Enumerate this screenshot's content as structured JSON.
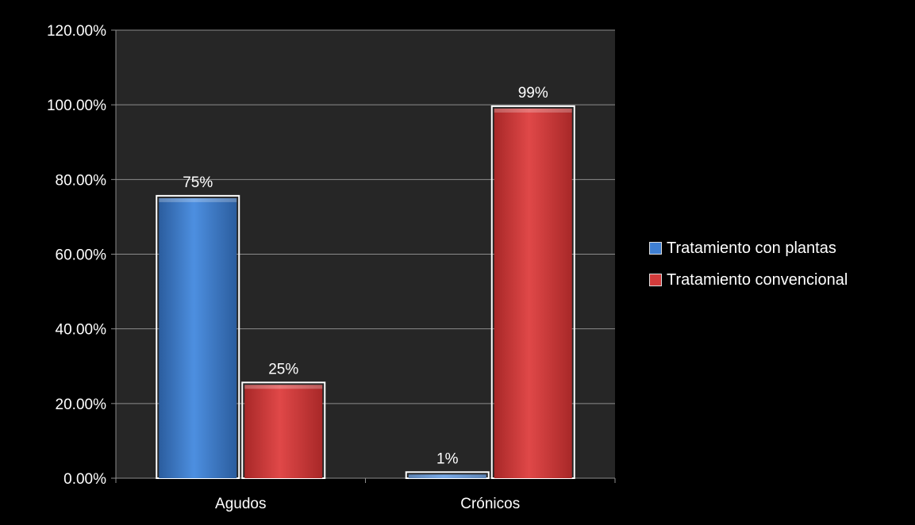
{
  "chart_data": {
    "type": "bar",
    "categories": [
      "Agudos",
      "Crónicos"
    ],
    "series": [
      {
        "name": "Tratamiento con plantas",
        "values": [
          75,
          1
        ],
        "labels": [
          "75%",
          "1%"
        ],
        "color": "#3f7fd2"
      },
      {
        "name": "Tratamiento convencional",
        "values": [
          25,
          99
        ],
        "labels": [
          "25%",
          "99%"
        ],
        "color": "#d23b3b"
      }
    ],
    "ylim": [
      0,
      120
    ],
    "yticks": [
      0,
      20,
      40,
      60,
      80,
      100,
      120
    ],
    "ytick_labels": [
      "0.00%",
      "20.00%",
      "40.00%",
      "60.00%",
      "80.00%",
      "100.00%",
      "120.00%"
    ],
    "grid": true,
    "legend_position": "right",
    "background": "#000000",
    "plot_background": "#262626"
  }
}
